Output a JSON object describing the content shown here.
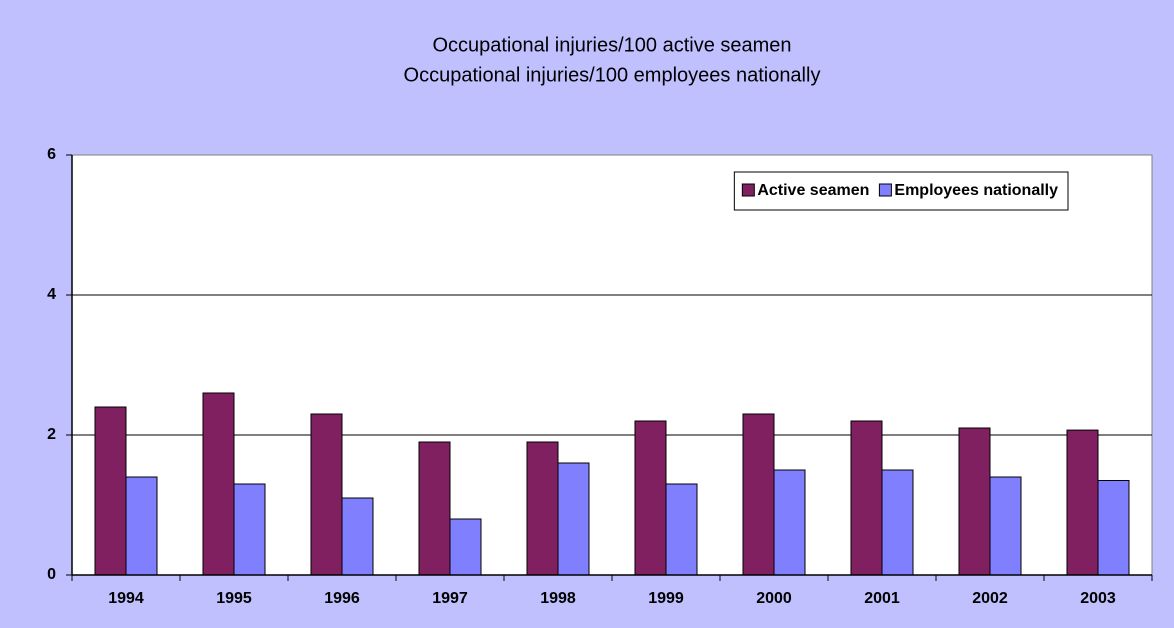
{
  "chart_data": {
    "type": "bar",
    "title": "Occupational injuries/100 active seamen",
    "subtitle": "Occupational injuries/100 employees nationally",
    "categories": [
      "1994",
      "1995",
      "1996",
      "1997",
      "1998",
      "1999",
      "2000",
      "2001",
      "2002",
      "2003"
    ],
    "series": [
      {
        "name": "Active seamen",
        "color": "#802060",
        "values": [
          2.4,
          2.6,
          2.3,
          1.9,
          1.9,
          2.2,
          2.3,
          2.2,
          2.1,
          2.07
        ]
      },
      {
        "name": "Employees nationally",
        "color": "#8080ff",
        "values": [
          1.4,
          1.3,
          1.1,
          0.8,
          1.6,
          1.3,
          1.5,
          1.5,
          1.4,
          1.35
        ]
      }
    ],
    "ylim": [
      0,
      6
    ],
    "yticks": [
      0,
      2,
      4,
      6
    ],
    "grid": true,
    "legend": "top-right"
  }
}
